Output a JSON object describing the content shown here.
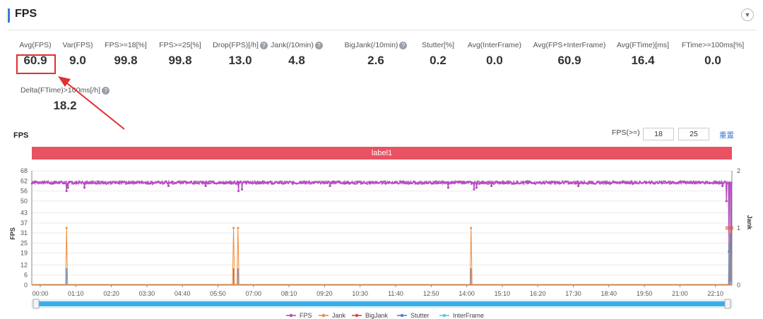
{
  "header": {
    "title": "FPS",
    "collapse_icon": "chevron-down-icon"
  },
  "metrics": [
    {
      "label": "Avg(FPS)",
      "value": "60.9",
      "help": false
    },
    {
      "label": "Var(FPS)",
      "value": "9.0",
      "help": false
    },
    {
      "label": "FPS>=18[%]",
      "value": "99.8",
      "help": false
    },
    {
      "label": "FPS>=25[%]",
      "value": "99.8",
      "help": false
    },
    {
      "label": "Drop(FPS)[/h]",
      "value": "13.0",
      "help": true
    },
    {
      "label": "Jank(/10min)",
      "value": "4.8",
      "help": true
    },
    {
      "label": "BigJank(/10min)",
      "value": "2.6",
      "help": true
    },
    {
      "label": "Stutter[%]",
      "value": "0.2",
      "help": false
    },
    {
      "label": "Avg(InterFrame)",
      "value": "0.0",
      "help": false
    },
    {
      "label": "Avg(FPS+InterFrame)",
      "value": "60.9",
      "help": false
    },
    {
      "label": "Avg(FTime)[ms]",
      "value": "16.4",
      "help": false
    },
    {
      "label": "FTime>=100ms[%]",
      "value": "0.0",
      "help": false
    },
    {
      "label": "Delta(FTime)>100ms[/h]",
      "value": "18.2",
      "help": true
    }
  ],
  "chart_section": {
    "title": "FPS",
    "threshold_label": "FPS(>=)",
    "threshold_1": "18",
    "threshold_2": "25",
    "reset_label": "重置",
    "band_label": "label1"
  },
  "chart_data": {
    "type": "line",
    "ylabel": "FPS",
    "y2label": "Jank",
    "yticks": [
      0,
      6,
      12,
      19,
      25,
      31,
      37,
      43,
      50,
      56,
      62,
      68
    ],
    "ylim": [
      0,
      68
    ],
    "y2ticks": [
      0,
      1,
      2
    ],
    "y2lim": [
      0,
      2
    ],
    "xticks": [
      "00:00",
      "01:10",
      "02:20",
      "03:30",
      "04:40",
      "05:50",
      "07:00",
      "08:10",
      "09:20",
      "10:30",
      "11:40",
      "12:50",
      "14:00",
      "15:10",
      "16:20",
      "17:30",
      "18:40",
      "19:50",
      "21:00",
      "22:10"
    ],
    "x_range_minutes": [
      0,
      1409
    ],
    "fps_baseline": 61,
    "fps_dips": [
      {
        "t": 70,
        "fps": 56
      },
      {
        "t": 73,
        "fps": 58
      },
      {
        "t": 106,
        "fps": 58
      },
      {
        "t": 275,
        "fps": 59
      },
      {
        "t": 350,
        "fps": 59
      },
      {
        "t": 416,
        "fps": 56
      },
      {
        "t": 423,
        "fps": 57
      },
      {
        "t": 600,
        "fps": 59
      },
      {
        "t": 838,
        "fps": 58
      },
      {
        "t": 890,
        "fps": 57
      },
      {
        "t": 895,
        "fps": 58
      },
      {
        "t": 925,
        "fps": 59
      },
      {
        "t": 1100,
        "fps": 59
      },
      {
        "t": 1390,
        "fps": 59
      },
      {
        "t": 1398,
        "fps": 50
      },
      {
        "t": 1403,
        "fps": 20
      },
      {
        "t": 1407,
        "fps": 3
      }
    ],
    "series": [
      {
        "name": "FPS",
        "color": "#b44dbf"
      },
      {
        "name": "Jank",
        "color": "#f28c38",
        "spikes": [
          70,
          406,
          415,
          884,
          1404,
          1406
        ]
      },
      {
        "name": "BigJank",
        "color": "#d9443a",
        "spikes": [
          1404
        ]
      },
      {
        "name": "Stutter",
        "color": "#4e7fd1",
        "spikes": [
          70,
          406,
          415,
          884,
          1403,
          1406
        ],
        "heights": [
          10,
          10,
          10,
          10,
          25,
          31
        ]
      },
      {
        "name": "InterFrame",
        "color": "#4fd0d0"
      }
    ],
    "slider": {
      "start": 0,
      "end": 1
    }
  }
}
